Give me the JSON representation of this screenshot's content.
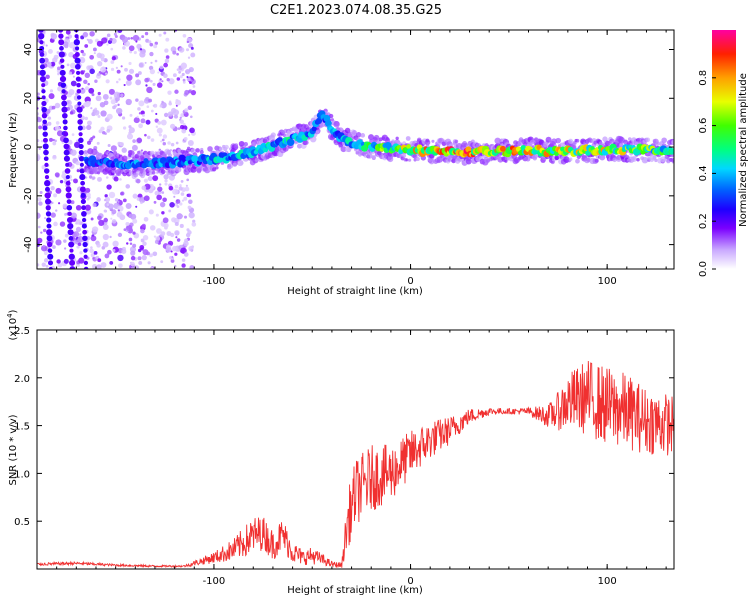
{
  "title": "C2E1.2023.074.08.35.G25",
  "chart_data": [
    {
      "type": "heatmap",
      "xlabel": "Height of straight line (km)",
      "ylabel": "Frequency (Hz)",
      "xlim": [
        -190,
        134
      ],
      "ylim": [
        -50,
        48
      ],
      "xticks": [
        -100,
        0,
        100
      ],
      "yticks": [
        -40,
        -20,
        0,
        20,
        40
      ],
      "colorbar": {
        "label": "Normalized spectral amplitude",
        "range": [
          0.0,
          1.0
        ],
        "ticks": [
          "0.0",
          "0.2",
          "0.4",
          "0.6",
          "0.8"
        ],
        "colors": [
          "#ffffff",
          "#c9a8ff",
          "#7b00ff",
          "#1d00ff",
          "#0060ff",
          "#00d8ff",
          "#00ff80",
          "#40ff00",
          "#e8ff00",
          "#ffa000",
          "#ff2000",
          "#ff00a0"
        ]
      },
      "ridge": [
        {
          "x": -165,
          "f": -6,
          "amp": 0.35
        },
        {
          "x": -140,
          "f": -7,
          "amp": 0.45
        },
        {
          "x": -120,
          "f": -6,
          "amp": 0.45
        },
        {
          "x": -100,
          "f": -5,
          "amp": 0.5
        },
        {
          "x": -80,
          "f": -2,
          "amp": 0.5
        },
        {
          "x": -65,
          "f": 2,
          "amp": 0.55
        },
        {
          "x": -50,
          "f": 6,
          "amp": 0.5
        },
        {
          "x": -45,
          "f": 13,
          "amp": 0.45
        },
        {
          "x": -35,
          "f": 3,
          "amp": 0.5
        },
        {
          "x": -20,
          "f": 0,
          "amp": 0.65
        },
        {
          "x": 0,
          "f": -1,
          "amp": 0.8
        },
        {
          "x": 20,
          "f": -2,
          "amp": 0.95
        },
        {
          "x": 40,
          "f": -2,
          "amp": 0.9
        },
        {
          "x": 60,
          "f": -1,
          "amp": 0.85
        },
        {
          "x": 80,
          "f": -2,
          "amp": 0.8
        },
        {
          "x": 100,
          "f": -1,
          "amp": 0.8
        },
        {
          "x": 120,
          "f": -1,
          "amp": 0.75
        },
        {
          "x": 134,
          "f": -2,
          "amp": 0.6
        }
      ]
    },
    {
      "type": "line",
      "xlabel": "Height of straight line (km)",
      "ylabel": "SNR (10 * v/v)",
      "scale_label": "(x10",
      "scale_exponent": "4",
      "xlim": [
        -190,
        134
      ],
      "ylim": [
        0,
        25000
      ],
      "xticks": [
        -100,
        0,
        100
      ],
      "yticks": [
        5000,
        10000,
        15000,
        20000,
        25000
      ],
      "ytick_labels": [
        "0.5",
        "1.0",
        "1.5",
        "2.0",
        "2.5"
      ],
      "color": "#f03030",
      "series": [
        {
          "x": [
            -190,
            -170,
            -150,
            -130,
            -115,
            -100,
            -90,
            -80,
            -75,
            -70,
            -65,
            -60,
            -55,
            -50,
            -45,
            -40,
            -35,
            -32,
            -28,
            -20,
            -10,
            0,
            10,
            20,
            30,
            40,
            50,
            60,
            70,
            75,
            80,
            90,
            100,
            110,
            120,
            134
          ],
          "y": [
            500,
            600,
            400,
            300,
            300,
            1200,
            2000,
            3500,
            3800,
            2500,
            3600,
            1800,
            1200,
            1400,
            1000,
            500,
            400,
            5000,
            8000,
            9500,
            10000,
            12000,
            13500,
            14500,
            16000,
            16500,
            16500,
            16500,
            16000,
            16500,
            17500,
            18000,
            17000,
            16500,
            15500,
            15000
          ],
          "noise": [
            150,
            150,
            120,
            100,
            100,
            600,
            1200,
            2000,
            1800,
            1600,
            1800,
            1200,
            800,
            900,
            600,
            300,
            300,
            3000,
            3500,
            3500,
            3000,
            2500,
            2000,
            1500,
            800,
            400,
            300,
            400,
            1200,
            2000,
            3000,
            4000,
            4200,
            4000,
            3500,
            3200
          ]
        }
      ]
    }
  ]
}
